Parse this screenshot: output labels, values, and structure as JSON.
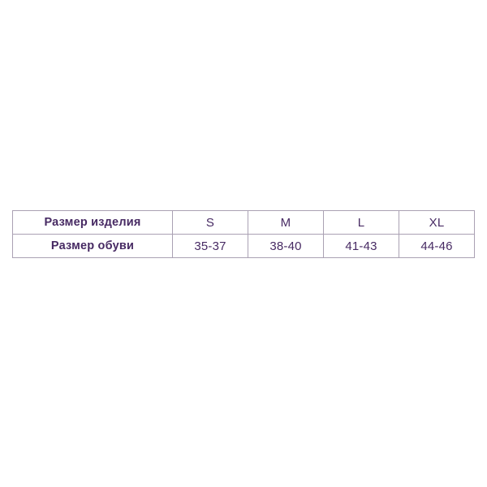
{
  "page": {
    "background_color": "#ffffff",
    "text_color": "#472a63",
    "border_color": "#aaa1b3"
  },
  "size_table": {
    "rows": [
      {
        "label": "Размер изделия",
        "values": [
          "S",
          "M",
          "L",
          "XL"
        ]
      },
      {
        "label": "Размер обуви",
        "values": [
          "35-37",
          "38-40",
          "41-43",
          "44-46"
        ]
      }
    ]
  },
  "chart_data": {
    "type": "table",
    "columns": [
      "Размер изделия",
      "S",
      "M",
      "L",
      "XL"
    ],
    "rows": [
      [
        "Размер изделия",
        "S",
        "M",
        "L",
        "XL"
      ],
      [
        "Размер обуви",
        "35-37",
        "38-40",
        "41-43",
        "44-46"
      ]
    ],
    "title": "",
    "notes": "Size conversion table: product size (S/M/L/XL) to shoe size ranges (35-37, 38-40, 41-43, 44-46)",
    "layout": {
      "grid": true,
      "first_column_bold": true,
      "text_align": "center"
    }
  }
}
